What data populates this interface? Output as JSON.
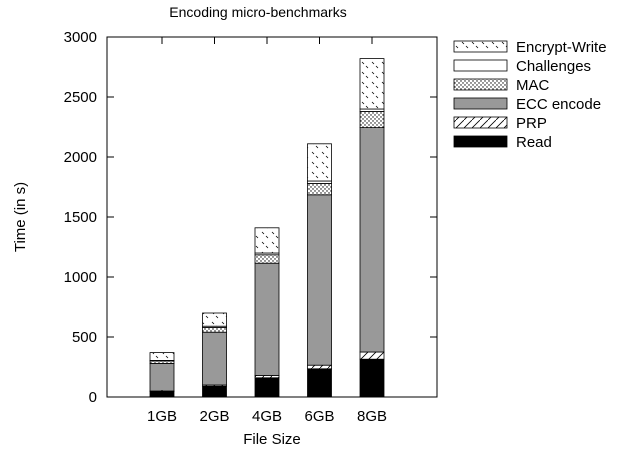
{
  "chart_data": {
    "type": "bar",
    "stacked": true,
    "title": "Encoding micro-benchmarks",
    "xlabel": "File Size",
    "ylabel": "Time (in s)",
    "categories": [
      "1GB",
      "2GB",
      "4GB",
      "6GB",
      "8GB"
    ],
    "ylim": [
      0,
      3000
    ],
    "yticks": [
      0,
      500,
      1000,
      1500,
      2000,
      2500,
      3000
    ],
    "grid": false,
    "legend_position": "right",
    "series": [
      {
        "name": "Read",
        "values": [
          45,
          90,
          160,
          235,
          315
        ],
        "fill": "#000000",
        "pattern": "solid"
      },
      {
        "name": "PRP",
        "values": [
          5,
          10,
          20,
          30,
          60
        ],
        "fill": "#ffffff",
        "pattern": "slash"
      },
      {
        "name": "ECC encode",
        "values": [
          230,
          440,
          935,
          1420,
          1870
        ],
        "fill": "#999999",
        "pattern": "solid"
      },
      {
        "name": "MAC",
        "values": [
          20,
          40,
          70,
          95,
          135
        ],
        "fill": "#ffffff",
        "pattern": "dots"
      },
      {
        "name": "Challenges",
        "values": [
          5,
          10,
          15,
          20,
          20
        ],
        "fill": "#ffffff",
        "pattern": "none"
      },
      {
        "name": "Encrypt-Write",
        "values": [
          65,
          110,
          210,
          310,
          420
        ],
        "fill": "#ffffff",
        "pattern": "backslash"
      }
    ],
    "legend_order": [
      "Encrypt-Write",
      "Challenges",
      "MAC",
      "ECC encode",
      "PRP",
      "Read"
    ]
  }
}
